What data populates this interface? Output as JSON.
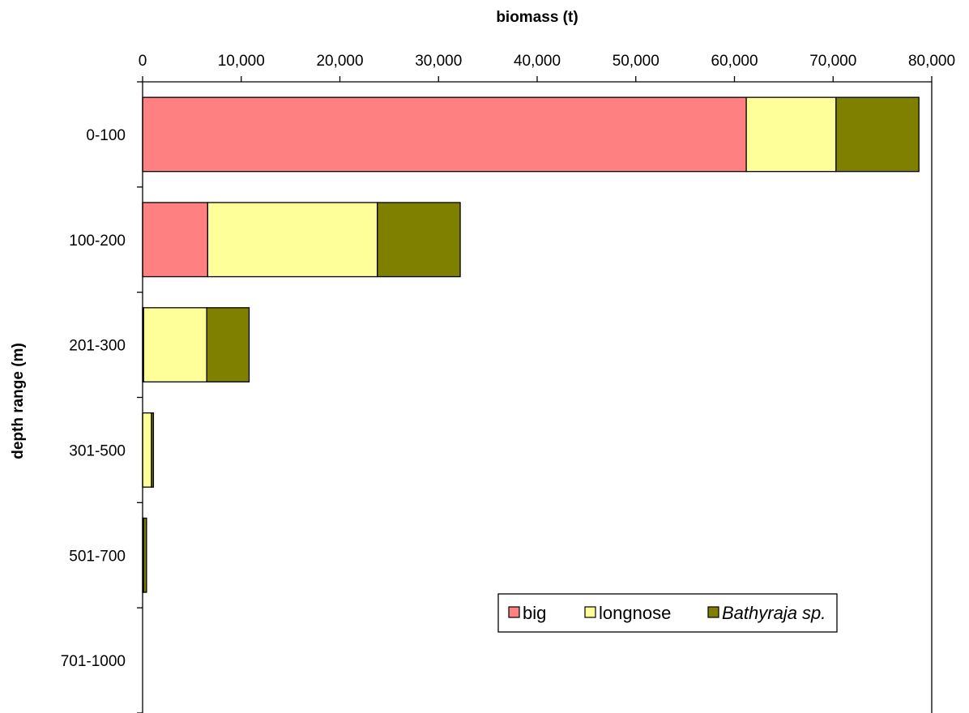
{
  "chart_data": {
    "type": "bar",
    "orientation": "horizontal",
    "stacked": true,
    "xlabel": "biomass (t)",
    "ylabel": "depth range (m)",
    "xlim": [
      0,
      80000
    ],
    "x_ticks": [
      "0",
      "10,000",
      "20,000",
      "30,000",
      "40,000",
      "50,000",
      "60,000",
      "70,000",
      "80,000"
    ],
    "x_axis_position": "top",
    "grid": false,
    "categories": [
      "0-100",
      "100-200",
      "201-300",
      "301-500",
      "501-700",
      "701-1000"
    ],
    "series": [
      {
        "name": "big",
        "values": [
          61200,
          6600,
          100,
          0,
          0,
          0
        ],
        "color": "#FF8080",
        "italic": false
      },
      {
        "name": "longnose",
        "values": [
          9100,
          17200,
          6400,
          900,
          100,
          0
        ],
        "color": "#FFFF99",
        "italic": false
      },
      {
        "name": "Bathyraja sp.",
        "values": [
          8400,
          8400,
          4300,
          200,
          300,
          0
        ],
        "color": "#808000",
        "italic": true
      }
    ],
    "legend_position": "bottom-right"
  }
}
